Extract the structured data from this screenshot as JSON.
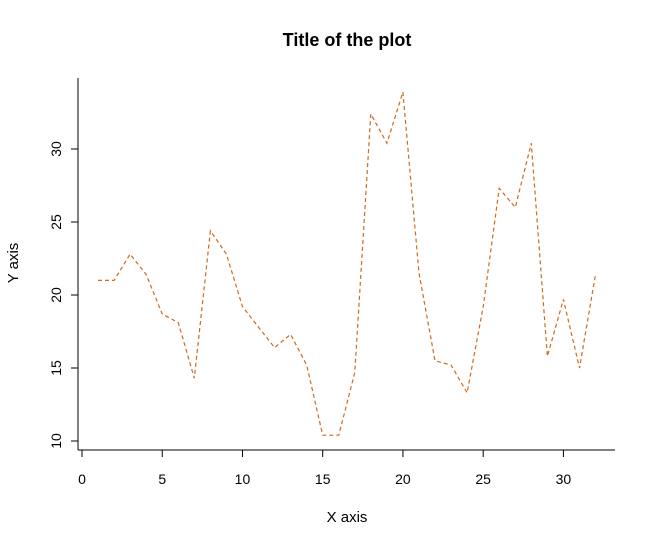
{
  "chart_data": {
    "type": "line",
    "title": "Title of the plot",
    "xlabel": "X axis",
    "ylabel": "Y axis",
    "xlim": [
      0,
      33
    ],
    "ylim": [
      10,
      34.5
    ],
    "xticks": [
      0,
      5,
      10,
      15,
      20,
      25,
      30
    ],
    "yticks": [
      10,
      15,
      20,
      25,
      30
    ],
    "grid": false,
    "line_color": "#d2691e",
    "line_style": "dashed",
    "series": [
      {
        "x": [
          1,
          2,
          3,
          4,
          5,
          6,
          7,
          8,
          9,
          10,
          11,
          12,
          13,
          14,
          15,
          16,
          17,
          18,
          19,
          20,
          21,
          22,
          23,
          24,
          25,
          26,
          27,
          28,
          29,
          30,
          31,
          32
        ],
        "values": [
          21.0,
          21.0,
          22.8,
          21.4,
          18.7,
          18.1,
          14.3,
          24.4,
          22.8,
          19.2,
          17.8,
          16.4,
          17.3,
          15.2,
          10.4,
          10.4,
          14.7,
          32.4,
          30.4,
          33.9,
          21.5,
          15.5,
          15.2,
          13.3,
          19.2,
          27.3,
          26.0,
          30.4,
          15.8,
          19.7,
          15.0,
          21.4
        ]
      }
    ]
  }
}
